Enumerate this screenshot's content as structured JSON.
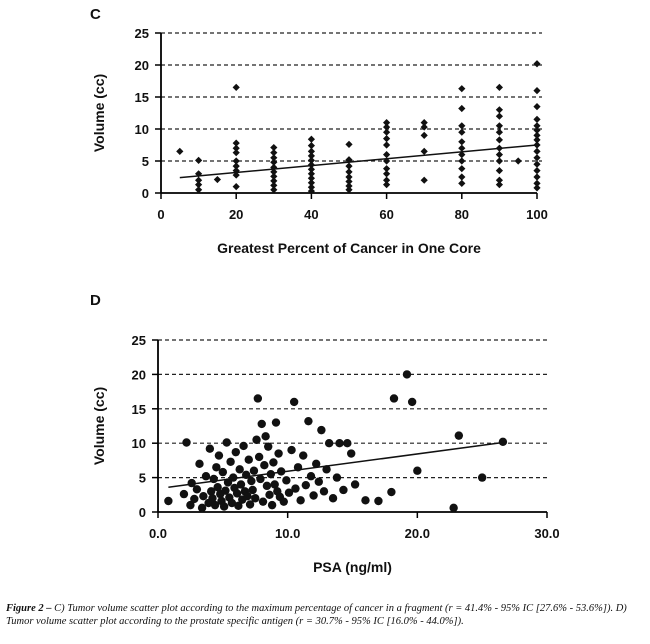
{
  "chart_data": [
    {
      "panel": "C",
      "type": "scatter",
      "xlabel": "Greatest Percent of Cancer in One Core",
      "ylabel": "Volume (cc)",
      "xlim": [
        0,
        100
      ],
      "ylim": [
        0,
        25
      ],
      "xticks": [
        "0",
        "20",
        "40",
        "60",
        "80",
        "100"
      ],
      "yticks": [
        "0",
        "5",
        "10",
        "15",
        "20",
        "25"
      ],
      "grid": "horizontal dashed",
      "marker": "diamond",
      "points": [
        [
          5,
          6.5
        ],
        [
          10,
          5.1
        ],
        [
          10,
          3.0
        ],
        [
          10,
          2.0
        ],
        [
          10,
          1.3
        ],
        [
          10,
          0.5
        ],
        [
          15,
          2.1
        ],
        [
          20,
          16.5
        ],
        [
          20,
          7.8
        ],
        [
          20,
          7.0
        ],
        [
          20,
          6.3
        ],
        [
          20,
          5.0
        ],
        [
          20,
          4.2
        ],
        [
          20,
          3.5
        ],
        [
          20,
          2.8
        ],
        [
          20,
          1.0
        ],
        [
          30,
          7.1
        ],
        [
          30,
          6.3
        ],
        [
          30,
          5.5
        ],
        [
          30,
          4.8
        ],
        [
          30,
          4.0
        ],
        [
          30,
          3.3
        ],
        [
          30,
          2.6
        ],
        [
          30,
          1.9
        ],
        [
          30,
          1.2
        ],
        [
          30,
          0.5
        ],
        [
          40,
          8.4
        ],
        [
          40,
          7.4
        ],
        [
          40,
          6.5
        ],
        [
          40,
          5.8
        ],
        [
          40,
          5.1
        ],
        [
          40,
          4.4
        ],
        [
          40,
          3.7
        ],
        [
          40,
          3.0
        ],
        [
          40,
          2.3
        ],
        [
          40,
          1.6
        ],
        [
          40,
          0.9
        ],
        [
          40,
          0.3
        ],
        [
          50,
          7.6
        ],
        [
          50,
          5.2
        ],
        [
          50,
          4.2
        ],
        [
          50,
          3.3
        ],
        [
          50,
          2.5
        ],
        [
          50,
          1.8
        ],
        [
          50,
          1.1
        ],
        [
          50,
          0.5
        ],
        [
          60,
          11.0
        ],
        [
          60,
          10.3
        ],
        [
          60,
          9.5
        ],
        [
          60,
          8.5
        ],
        [
          60,
          7.5
        ],
        [
          60,
          6.0
        ],
        [
          60,
          5.0
        ],
        [
          60,
          3.8
        ],
        [
          60,
          3.0
        ],
        [
          60,
          2.0
        ],
        [
          60,
          1.3
        ],
        [
          70,
          11.0
        ],
        [
          70,
          10.3
        ],
        [
          70,
          9.0
        ],
        [
          70,
          6.5
        ],
        [
          70,
          2.0
        ],
        [
          80,
          16.3
        ],
        [
          80,
          13.2
        ],
        [
          80,
          10.5
        ],
        [
          80,
          9.5
        ],
        [
          80,
          8.0
        ],
        [
          80,
          7.0
        ],
        [
          80,
          6.0
        ],
        [
          80,
          5.0
        ],
        [
          80,
          3.8
        ],
        [
          80,
          2.5
        ],
        [
          80,
          1.5
        ],
        [
          90,
          16.5
        ],
        [
          90,
          13.0
        ],
        [
          90,
          12.0
        ],
        [
          90,
          10.5
        ],
        [
          90,
          9.5
        ],
        [
          90,
          8.3
        ],
        [
          90,
          7.0
        ],
        [
          90,
          6.0
        ],
        [
          90,
          5.0
        ],
        [
          90,
          3.5
        ],
        [
          90,
          2.0
        ],
        [
          90,
          1.3
        ],
        [
          95,
          5.0
        ],
        [
          100,
          20.2
        ],
        [
          100,
          16.0
        ],
        [
          100,
          13.5
        ],
        [
          100,
          11.5
        ],
        [
          100,
          10.5
        ],
        [
          100,
          9.8
        ],
        [
          100,
          9.0
        ],
        [
          100,
          8.3
        ],
        [
          100,
          7.5
        ],
        [
          100,
          6.5
        ],
        [
          100,
          5.5
        ],
        [
          100,
          4.5
        ],
        [
          100,
          3.5
        ],
        [
          100,
          2.5
        ],
        [
          100,
          1.5
        ],
        [
          100,
          0.8
        ]
      ],
      "trendline": [
        [
          5,
          2.4
        ],
        [
          100,
          7.5
        ]
      ]
    },
    {
      "panel": "D",
      "type": "scatter",
      "xlabel": "PSA (ng/ml)",
      "ylabel": "Volume (cc)",
      "xlim": [
        0,
        30
      ],
      "ylim": [
        0,
        25
      ],
      "xticks": [
        "0.0",
        "10.0",
        "20.0",
        "30.0"
      ],
      "yticks": [
        "0",
        "5",
        "10",
        "15",
        "20",
        "25"
      ],
      "grid": "horizontal dashed",
      "marker": "circle",
      "points": [
        [
          0.8,
          1.6
        ],
        [
          2.0,
          2.6
        ],
        [
          2.2,
          10.1
        ],
        [
          2.5,
          1.0
        ],
        [
          2.6,
          4.2
        ],
        [
          2.8,
          1.9
        ],
        [
          3.0,
          3.3
        ],
        [
          3.2,
          7.0
        ],
        [
          3.4,
          0.6
        ],
        [
          3.5,
          2.3
        ],
        [
          3.7,
          5.2
        ],
        [
          3.9,
          1.3
        ],
        [
          4.0,
          9.2
        ],
        [
          4.1,
          3.0
        ],
        [
          4.2,
          2.0
        ],
        [
          4.3,
          4.8
        ],
        [
          4.4,
          1.0
        ],
        [
          4.5,
          6.5
        ],
        [
          4.6,
          3.6
        ],
        [
          4.7,
          8.2
        ],
        [
          4.8,
          2.6
        ],
        [
          4.9,
          1.6
        ],
        [
          5.0,
          5.8
        ],
        [
          5.1,
          0.8
        ],
        [
          5.2,
          3.1
        ],
        [
          5.3,
          10.1
        ],
        [
          5.4,
          4.3
        ],
        [
          5.5,
          2.1
        ],
        [
          5.6,
          7.3
        ],
        [
          5.7,
          1.3
        ],
        [
          5.8,
          5.0
        ],
        [
          5.9,
          3.5
        ],
        [
          6.0,
          8.7
        ],
        [
          6.1,
          2.7
        ],
        [
          6.2,
          0.9
        ],
        [
          6.3,
          6.2
        ],
        [
          6.4,
          4.0
        ],
        [
          6.5,
          1.8
        ],
        [
          6.6,
          9.6
        ],
        [
          6.7,
          3.0
        ],
        [
          6.8,
          5.4
        ],
        [
          6.9,
          2.3
        ],
        [
          7.0,
          7.6
        ],
        [
          7.1,
          1.1
        ],
        [
          7.2,
          4.5
        ],
        [
          7.3,
          3.2
        ],
        [
          7.4,
          6.0
        ],
        [
          7.5,
          2.0
        ],
        [
          7.6,
          10.5
        ],
        [
          7.7,
          16.5
        ],
        [
          7.8,
          8.0
        ],
        [
          7.9,
          4.8
        ],
        [
          8.0,
          12.8
        ],
        [
          8.1,
          1.5
        ],
        [
          8.2,
          6.8
        ],
        [
          8.3,
          11.0
        ],
        [
          8.4,
          3.8
        ],
        [
          8.5,
          9.5
        ],
        [
          8.6,
          2.5
        ],
        [
          8.7,
          5.5
        ],
        [
          8.8,
          1.0
        ],
        [
          8.9,
          7.2
        ],
        [
          9.0,
          4.0
        ],
        [
          9.1,
          13.0
        ],
        [
          9.2,
          3.0
        ],
        [
          9.3,
          8.5
        ],
        [
          9.4,
          2.2
        ],
        [
          9.5,
          5.9
        ],
        [
          9.7,
          1.5
        ],
        [
          9.9,
          4.6
        ],
        [
          10.1,
          2.8
        ],
        [
          10.3,
          9.0
        ],
        [
          10.5,
          16.0
        ],
        [
          10.6,
          3.4
        ],
        [
          10.8,
          6.5
        ],
        [
          11.0,
          1.7
        ],
        [
          11.2,
          8.2
        ],
        [
          11.4,
          3.9
        ],
        [
          11.6,
          13.2
        ],
        [
          11.8,
          5.2
        ],
        [
          12.0,
          2.4
        ],
        [
          12.2,
          7.0
        ],
        [
          12.4,
          4.4
        ],
        [
          12.6,
          11.9
        ],
        [
          12.8,
          3.0
        ],
        [
          13.0,
          6.2
        ],
        [
          13.2,
          10.0
        ],
        [
          13.5,
          2.0
        ],
        [
          13.8,
          5.0
        ],
        [
          14.0,
          10.0
        ],
        [
          14.3,
          3.2
        ],
        [
          14.6,
          10.0
        ],
        [
          14.9,
          8.5
        ],
        [
          15.2,
          4.0
        ],
        [
          16.0,
          1.7
        ],
        [
          17.0,
          1.6
        ],
        [
          18.0,
          2.9
        ],
        [
          18.2,
          16.5
        ],
        [
          19.2,
          20.0
        ],
        [
          19.6,
          16.0
        ],
        [
          20.0,
          6.0
        ],
        [
          22.8,
          0.6
        ],
        [
          23.2,
          11.1
        ],
        [
          25.0,
          5.0
        ],
        [
          26.6,
          10.2
        ]
      ],
      "trendline": [
        [
          0.8,
          3.6
        ],
        [
          26.6,
          10.1
        ]
      ]
    }
  ],
  "panels": {
    "c_label": "C",
    "d_label": "D"
  },
  "caption": {
    "lead": "Figure 2 –",
    "text": " C) Tumor volume scatter plot according to the maximum percentage of cancer in a fragment (r = 41.4% - 95% IC [27.6% - 53.6%]). D) Tumor volume scatter plot according to the prostate specific antigen (r = 30.7% - 95% IC [16.0% - 44.0%])."
  },
  "colors": {
    "marker": "#111111",
    "grid": "#222222",
    "axis": "#000000"
  }
}
